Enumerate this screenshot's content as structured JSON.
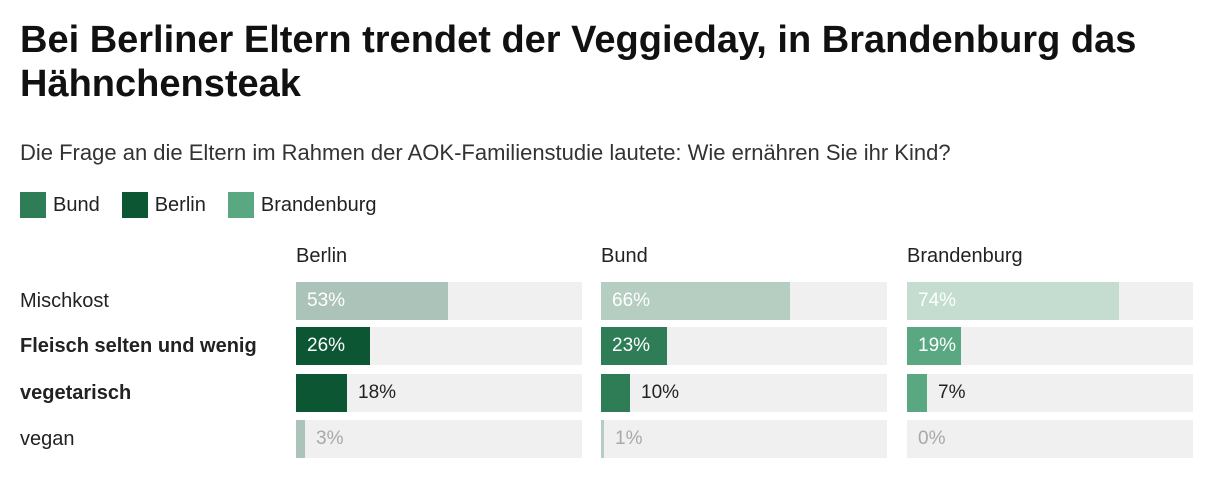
{
  "title": "Bei Berliner Eltern trendet der Veggieday, in Brandenburg das Hähnchensteak",
  "subtitle": "Die Frage an die Eltern im Rahmen der AOK-Familienstudie lautete: Wie ernähren Sie ihr Kind?",
  "legend": [
    {
      "label": "Bund",
      "color": "#2e7d57"
    },
    {
      "label": "Berlin",
      "color": "#0d5634"
    },
    {
      "label": "Brandenburg",
      "color": "#5aa882"
    }
  ],
  "chart_data": {
    "type": "bar",
    "title": "Bei Berliner Eltern trendet der Veggieday, in Brandenburg das Hähnchensteak",
    "subtitle": "Die Frage an die Eltern im Rahmen der AOK-Familienstudie lautete: Wie ernähren Sie ihr Kind?",
    "categories": [
      "Mischkost",
      "Fleisch selten und wenig",
      "vegetarisch",
      "vegan"
    ],
    "bold_categories": [
      "Fleisch selten und wenig",
      "vegetarisch"
    ],
    "value_suffix": "%",
    "xlim": [
      0,
      100
    ],
    "legend_position": "top-left",
    "series": [
      {
        "name": "Berlin",
        "values": [
          53,
          26,
          18,
          3
        ],
        "color": "#0d5634",
        "muted_color": "#abc3b8"
      },
      {
        "name": "Bund",
        "values": [
          66,
          23,
          10,
          1
        ],
        "color": "#2e7d57",
        "muted_color": "#b6cdc2"
      },
      {
        "name": "Brandenburg",
        "values": [
          74,
          19,
          7,
          0
        ],
        "color": "#5aa882",
        "muted_color": "#c4ddd0"
      }
    ]
  }
}
